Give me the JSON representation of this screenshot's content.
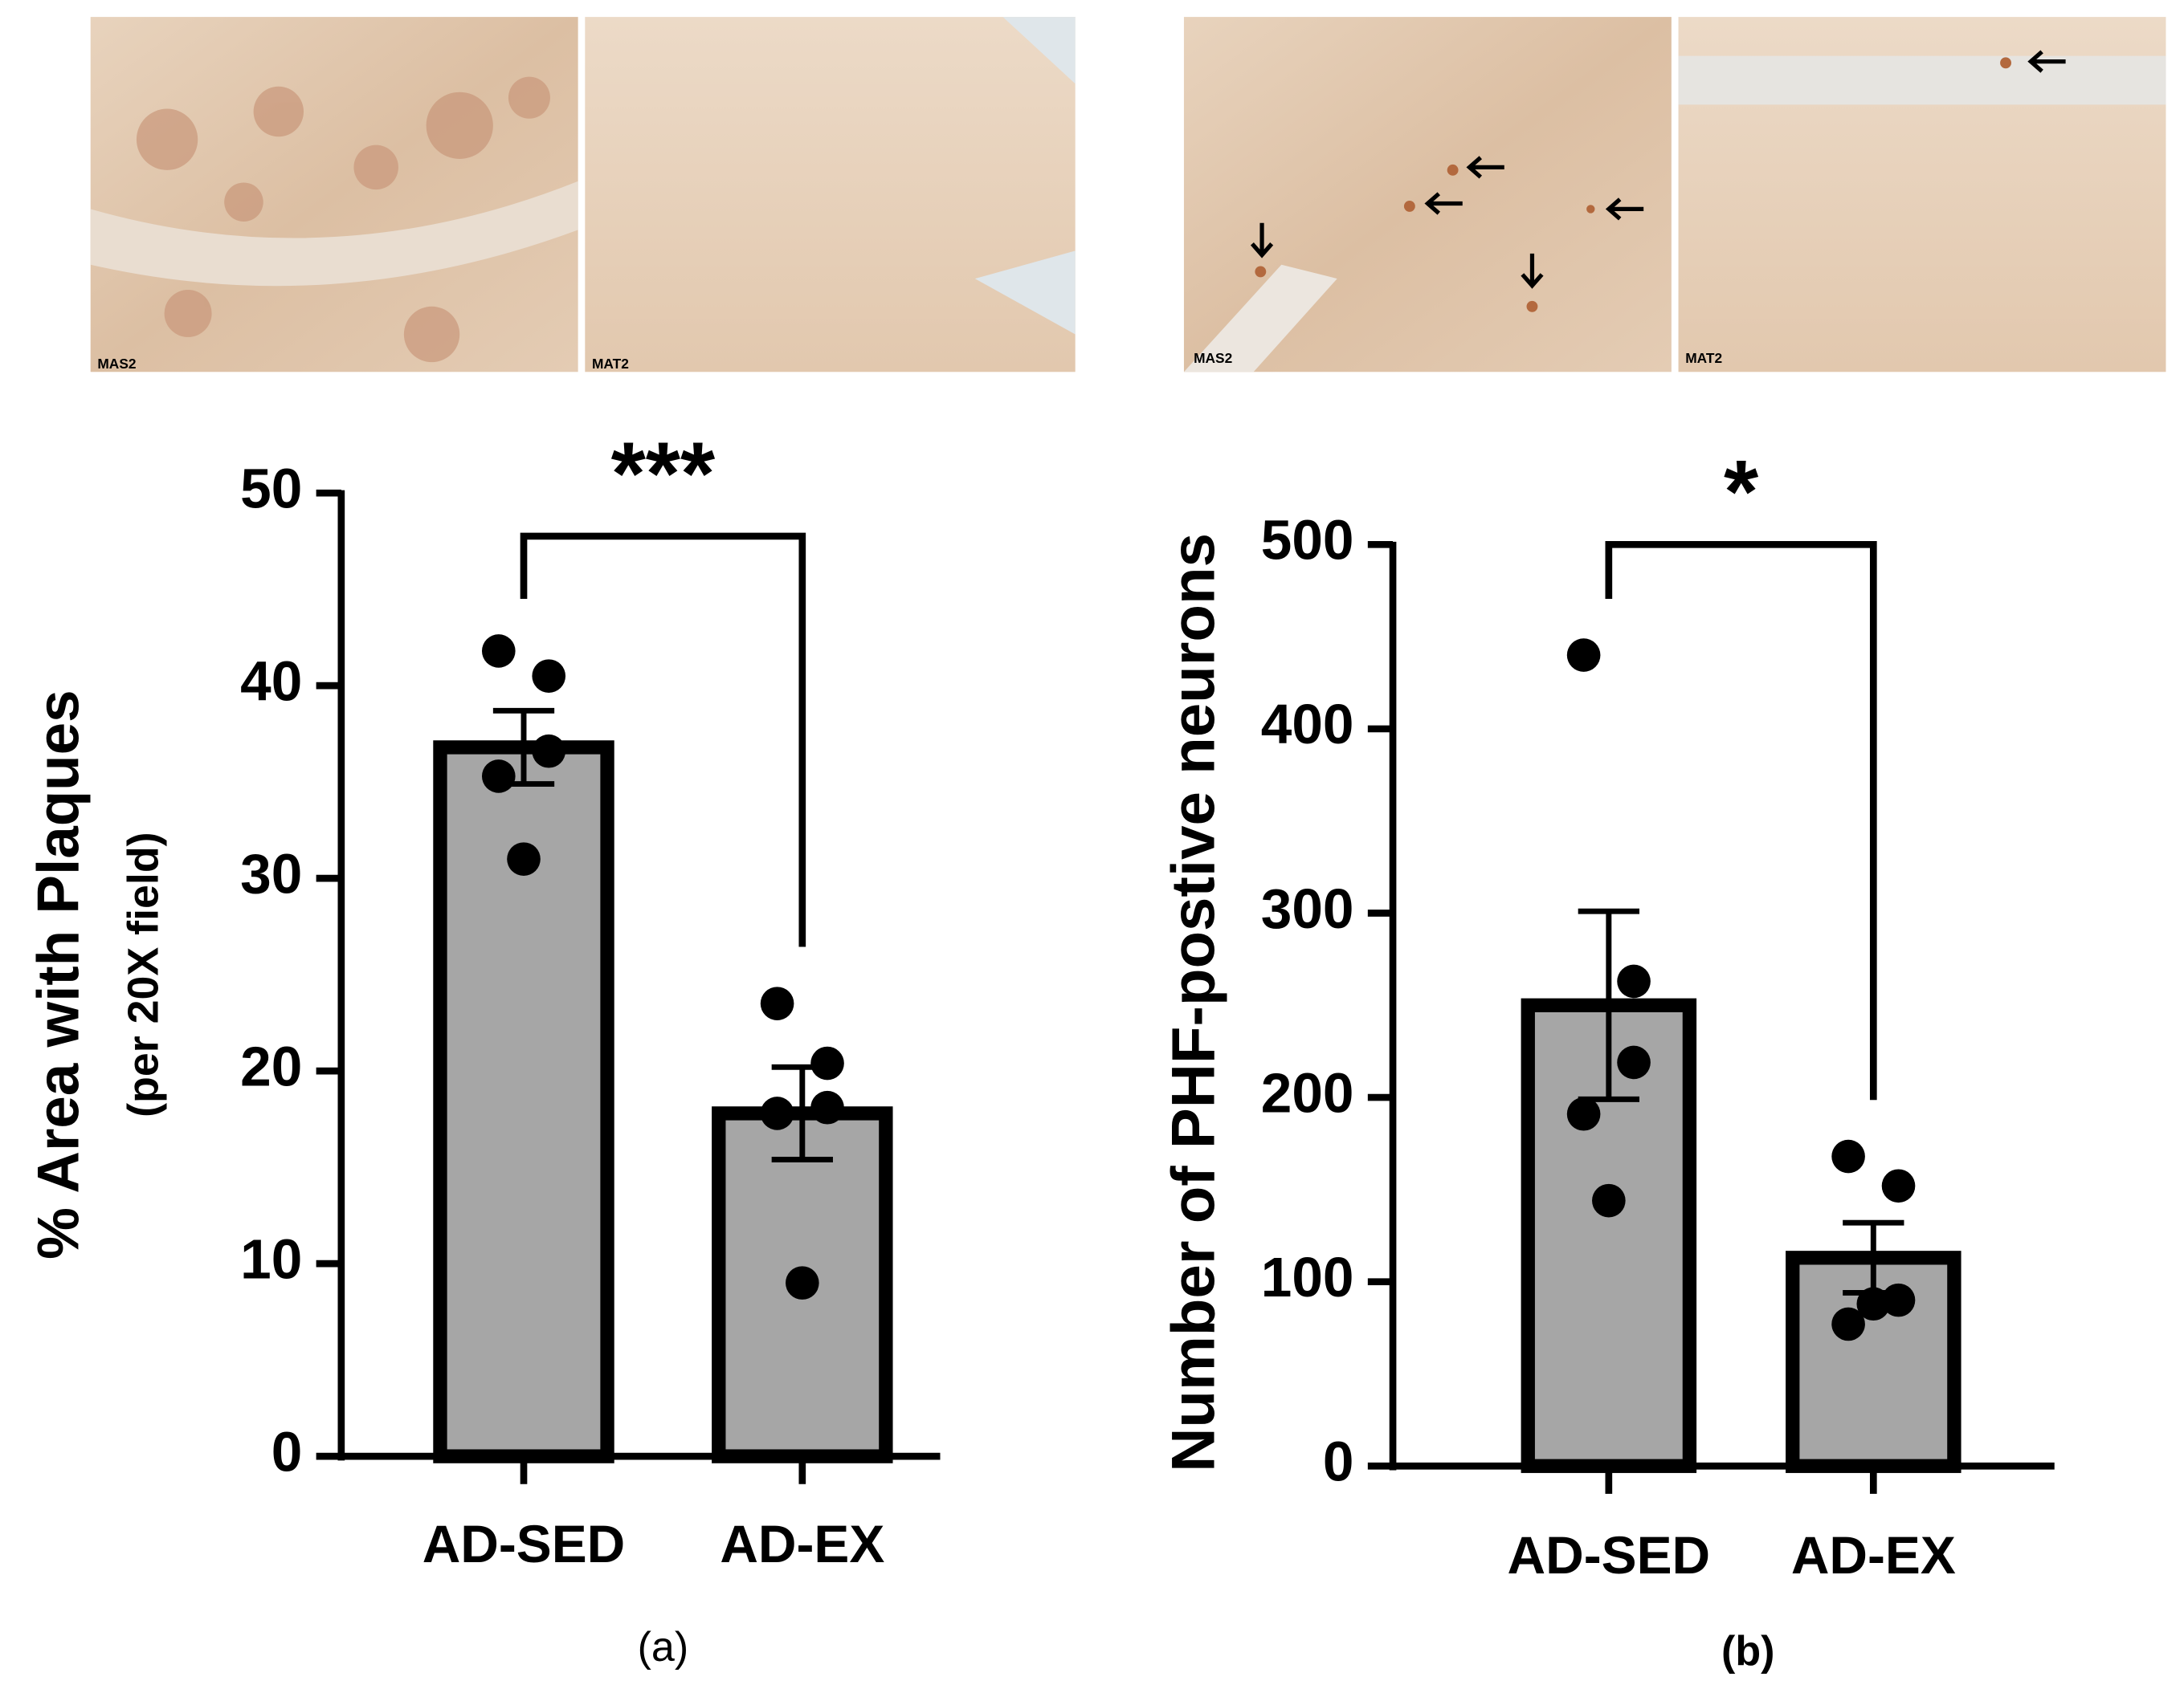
{
  "chart_data": [
    {
      "type": "bar",
      "panel_label": "(a)",
      "image_labels": [
        "MAS2",
        "MAT2"
      ],
      "ylabel": "% Area with Plaques",
      "ylabel2": "(per 20X field)",
      "categories": [
        "AD-SED",
        "AD-EX"
      ],
      "values": [
        36.8,
        17.8
      ],
      "errors": [
        1.9,
        2.4
      ],
      "points": [
        [
          41.8,
          40.5,
          36.6,
          35.3,
          31.0
        ],
        [
          23.5,
          20.4,
          18.1,
          17.8,
          9.0
        ]
      ],
      "significance": "***",
      "color": "#a6a6a6",
      "ylim": [
        0,
        50
      ],
      "yticks": [
        0,
        10,
        20,
        30,
        40,
        50
      ]
    },
    {
      "type": "bar",
      "panel_label": "(b)",
      "image_labels": [
        "MAS2",
        "MAT2"
      ],
      "ylabel": "Number of PHF-postive neurons",
      "categories": [
        "AD-SED",
        "AD-EX"
      ],
      "values": [
        250,
        113
      ],
      "errors": [
        51,
        19
      ],
      "points": [
        [
          440,
          263,
          219,
          191,
          144
        ],
        [
          168,
          152,
          90,
          77,
          88
        ]
      ],
      "significance": "*",
      "color": "#a6a6a6",
      "ylim": [
        0,
        500
      ],
      "yticks": [
        0,
        100,
        200,
        300,
        400,
        500
      ]
    }
  ]
}
